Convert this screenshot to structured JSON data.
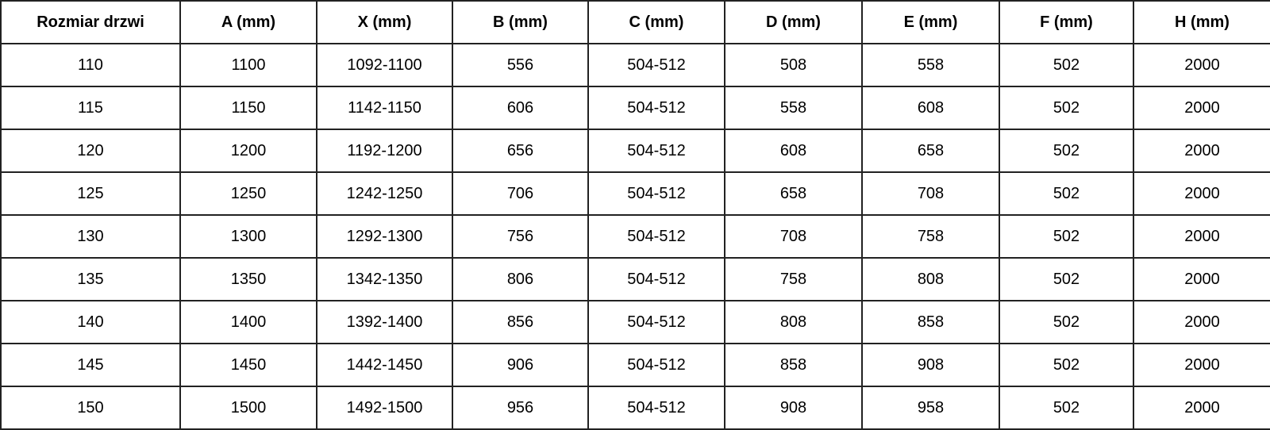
{
  "headers": [
    "Rozmiar drzwi",
    "A (mm)",
    "X (mm)",
    "B (mm)",
    "C (mm)",
    "D (mm)",
    "E (mm)",
    "F (mm)",
    "H (mm)"
  ],
  "rows": [
    [
      "110",
      "1100",
      "1092-1100",
      "556",
      "504-512",
      "508",
      "558",
      "502",
      "2000"
    ],
    [
      "115",
      "1150",
      "1142-1150",
      "606",
      "504-512",
      "558",
      "608",
      "502",
      "2000"
    ],
    [
      "120",
      "1200",
      "1192-1200",
      "656",
      "504-512",
      "608",
      "658",
      "502",
      "2000"
    ],
    [
      "125",
      "1250",
      "1242-1250",
      "706",
      "504-512",
      "658",
      "708",
      "502",
      "2000"
    ],
    [
      "130",
      "1300",
      "1292-1300",
      "756",
      "504-512",
      "708",
      "758",
      "502",
      "2000"
    ],
    [
      "135",
      "1350",
      "1342-1350",
      "806",
      "504-512",
      "758",
      "808",
      "502",
      "2000"
    ],
    [
      "140",
      "1400",
      "1392-1400",
      "856",
      "504-512",
      "808",
      "858",
      "502",
      "2000"
    ],
    [
      "145",
      "1450",
      "1442-1450",
      "906",
      "504-512",
      "858",
      "908",
      "502",
      "2000"
    ],
    [
      "150",
      "1500",
      "1492-1500",
      "956",
      "504-512",
      "908",
      "958",
      "502",
      "2000"
    ]
  ]
}
